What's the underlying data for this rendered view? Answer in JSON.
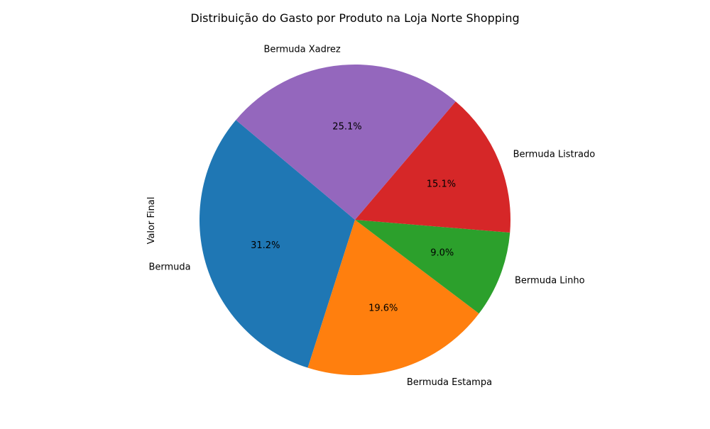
{
  "chart_data": {
    "type": "pie",
    "title": "Distribuição do Gasto por Produto na Loja Norte Shopping",
    "ylabel": "Valor Final",
    "categories": [
      "Bermuda",
      "Bermuda Estampa",
      "Bermuda Linho",
      "Bermuda Listrado",
      "Bermuda Xadrez"
    ],
    "values": [
      31.2,
      19.6,
      9.0,
      15.1,
      25.1
    ],
    "percent_labels": [
      "31.2%",
      "19.6%",
      "9.0%",
      "15.1%",
      "25.1%"
    ],
    "colors": [
      "#1f77b4",
      "#ff7f0e",
      "#2ca02c",
      "#d62728",
      "#9467bd"
    ],
    "start_angle_deg": 140,
    "direction": "counterclockwise"
  }
}
